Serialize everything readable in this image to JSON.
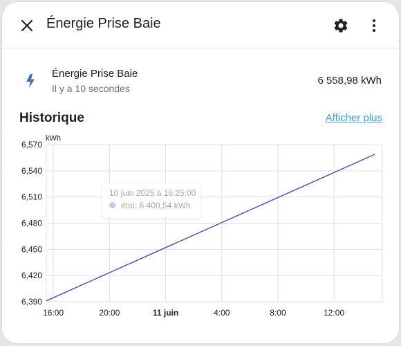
{
  "dialog": {
    "title": "Énergie Prise Baie",
    "close_icon": "close-icon",
    "settings_icon": "gear-icon",
    "menu_icon": "more-vertical-icon"
  },
  "entity": {
    "icon": "lightning-bolt-icon",
    "name": "Énergie Prise Baie",
    "last_updated": "Il y a 10 secondes",
    "state": "6 558,98 kWh"
  },
  "history": {
    "title": "Historique",
    "more_link": "Afficher plus"
  },
  "colors": {
    "line": "#3f51b5",
    "accent_link": "#3aa0e0",
    "icon": "#4a6fa5"
  },
  "chart_data": {
    "type": "line",
    "unit_label": "kWh",
    "y_ticks": [
      "6,570",
      "6,540",
      "6,510",
      "6,480",
      "6,450",
      "6,420",
      "6,390"
    ],
    "x_ticks": [
      "16:00",
      "20:00",
      "11 juin",
      "4:00",
      "8:00",
      "12:00"
    ],
    "ylim": [
      6390,
      6570
    ],
    "xlim_hours_start": "10 juin 2025 15:30",
    "series": [
      {
        "name": "état",
        "points": [
          {
            "x": "10 juin 2025 15:30",
            "y": 6391
          },
          {
            "x": "11 juin 2025 14:55",
            "y": 6558.98
          }
        ]
      }
    ],
    "tooltip": {
      "title": "10 juin 2025 à 16:25:00",
      "label": "état: 6 400,54 kWh"
    },
    "grid": true
  }
}
